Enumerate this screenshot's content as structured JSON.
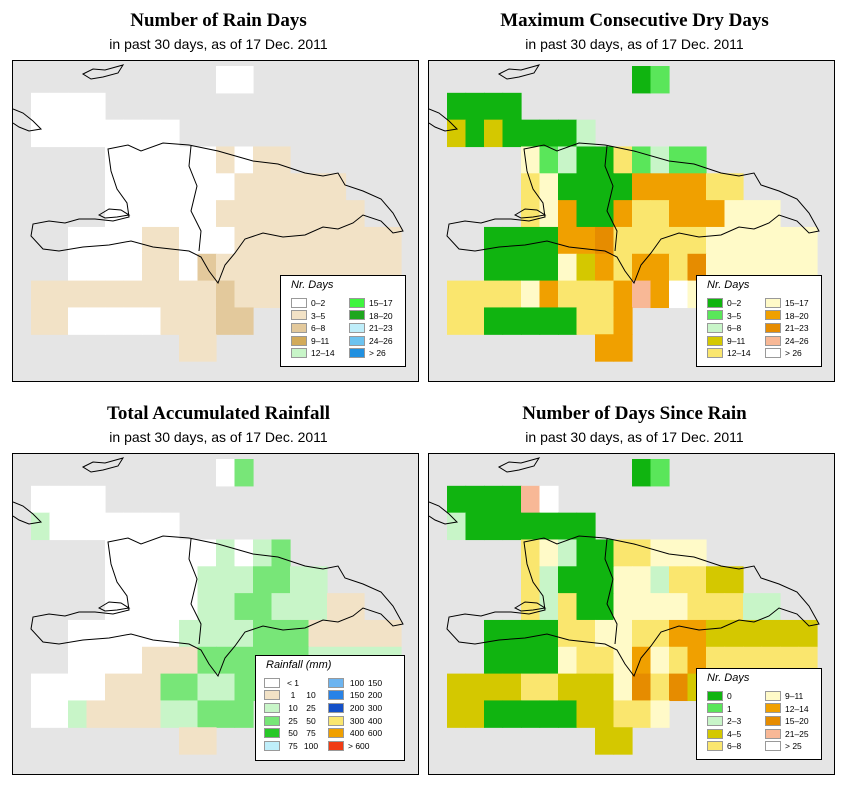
{
  "panels": [
    {
      "id": "rain-days",
      "title": "Number of Rain Days",
      "subtitle": "in past 30 days, as of  17 Dec. 2011",
      "legend_title": "Nr. Days",
      "legend_items": [
        {
          "label": "0–2",
          "color": "#ffffff"
        },
        {
          "label": "3–5",
          "color": "#f2e2c6"
        },
        {
          "label": "6–8",
          "color": "#e3c99c"
        },
        {
          "label": "9–11",
          "color": "#d2aa5a"
        },
        {
          "label": "12–14",
          "color": "#c8f5c8"
        },
        {
          "label": "15–17",
          "color": "#3ef53e"
        },
        {
          "label": "18–20",
          "color": "#1da61d"
        },
        {
          "label": "21–23",
          "color": "#bfeefa"
        },
        {
          "label": "24–26",
          "color": "#6cc3f0"
        },
        {
          "label": "> 26",
          "color": "#2090e0"
        }
      ]
    },
    {
      "id": "dry-days",
      "title": "Maximum Consecutive Dry Days",
      "subtitle": "in past 30 days, as of  17 Dec. 2011",
      "legend_title": "Nr. Days",
      "legend_items": [
        {
          "label": "0–2",
          "color": "#10b410"
        },
        {
          "label": "3–5",
          "color": "#5ae65a"
        },
        {
          "label": "6–8",
          "color": "#c8f5c8"
        },
        {
          "label": "9–11",
          "color": "#d4c800"
        },
        {
          "label": "12–14",
          "color": "#fae66e"
        },
        {
          "label": "15–17",
          "color": "#fffac8"
        },
        {
          "label": "18–20",
          "color": "#f0a000"
        },
        {
          "label": "21–23",
          "color": "#e68c00"
        },
        {
          "label": "24–26",
          "color": "#f8b896"
        },
        {
          "label": "> 26",
          "color": "#ffffff"
        }
      ]
    },
    {
      "id": "rainfall",
      "title": "Total Accumulated Rainfall",
      "subtitle": "in past 30 days, as of  17 Dec. 2011",
      "legend_title": "Rainfall (mm)",
      "legend_items": [
        {
          "lo": "< 1",
          "hi": "",
          "color": "#ffffff"
        },
        {
          "lo": "1",
          "hi": "10",
          "color": "#f2e2c6"
        },
        {
          "lo": "10",
          "hi": "25",
          "color": "#c8f5c8"
        },
        {
          "lo": "25",
          "hi": "50",
          "color": "#78e678"
        },
        {
          "lo": "50",
          "hi": "75",
          "color": "#28c828"
        },
        {
          "lo": "75",
          "hi": "100",
          "color": "#bfeefa"
        },
        {
          "lo": "100",
          "hi": "150",
          "color": "#6cb4f0"
        },
        {
          "lo": "150",
          "hi": "200",
          "color": "#2882e6"
        },
        {
          "lo": "200",
          "hi": "300",
          "color": "#1450c8"
        },
        {
          "lo": "300",
          "hi": "400",
          "color": "#fae66e"
        },
        {
          "lo": "400",
          "hi": "600",
          "color": "#f0a000"
        },
        {
          "lo": "> 600",
          "hi": "",
          "color": "#f03c14"
        }
      ]
    },
    {
      "id": "since-rain",
      "title": "Number of Days Since Rain",
      "subtitle": "in past 30 days, as of  17 Dec. 2011",
      "legend_title": "Nr. Days",
      "legend_items": [
        {
          "label": "0",
          "color": "#10b410"
        },
        {
          "label": "1",
          "color": "#5ae65a"
        },
        {
          "label": "2–3",
          "color": "#c8f5c8"
        },
        {
          "label": "4–5",
          "color": "#d4c800"
        },
        {
          "label": "6–8",
          "color": "#fae66e"
        },
        {
          "label": "9–11",
          "color": "#fffac8"
        },
        {
          "label": "12–14",
          "color": "#f0a000"
        },
        {
          "label": "15–20",
          "color": "#e68c00"
        },
        {
          "label": "21–25",
          "color": "#f8b896"
        },
        {
          "label": "> 25",
          "color": "#ffffff"
        }
      ]
    }
  ],
  "grids": {
    "rain-days": [
      "..........AA........",
      "AAAA................",
      "AAAAAAAA............",
      "....AAAAAABABB......",
      "....AAAAAAABBBBBB...",
      "....AAAAAABBBBBBBB..",
      "..AAAABBAAABBBBBBBBB",
      "..AAAABBACBBBBBBBBBB",
      "BBBBBBBBBBCBBBBBBBB.",
      "BBAAAAABBBCC.....BB.",
      "........BB.........."
    ],
    "dry-days": [
      "..........AB........",
      "AAAA................",
      "DADAAAAC............",
      "....FBCAAEBCBB......",
      "....EFAAAAGGGGEE....",
      "....EFGAAGEEGGGFFF..",
      "..AAAAGGHEEEEEFFFFFF",
      "..AAAAFDGEGGEHFFFFFF",
      "EEEEFGEEEGIGJFGFFFF.",
      "EEAAAAAEEGKL.....GF.",
      "........GG.........."
    ],
    "rainfall": [
      "..........AD........",
      "AAAA................",
      "CAAAAAAA............",
      "....AAAAAACACD......",
      "....AAAAACCCDDCC....",
      "....AAAAACCDDCCCBB..",
      "..AAAAAACCCCDDDBBBBB",
      "..AAAABBBDDDDDDCCCCC",
      "AAAABBBDDCCDDCCBBBBB",
      "AACBBBBCCDDD.....CB.",
      "........BB.........."
    ],
    "since-rain": [
      "..........AB........",
      "AAAAIJ..............",
      "CAAAAAAA............",
      "....EFCAAEEFFF......",
      "....ECAAAFFCEEDD....",
      "....ECEAAFFFFEEECC..",
      "..AAAAEEFFEEGGDDDDDD",
      "..AAAAFEEFGFEGEEEEEE",
      "DDDDEEDDDFHEHDFFEEE.",
      "DDAAAAADDEEF.....EE.",
      "........DD.........."
    ]
  }
}
